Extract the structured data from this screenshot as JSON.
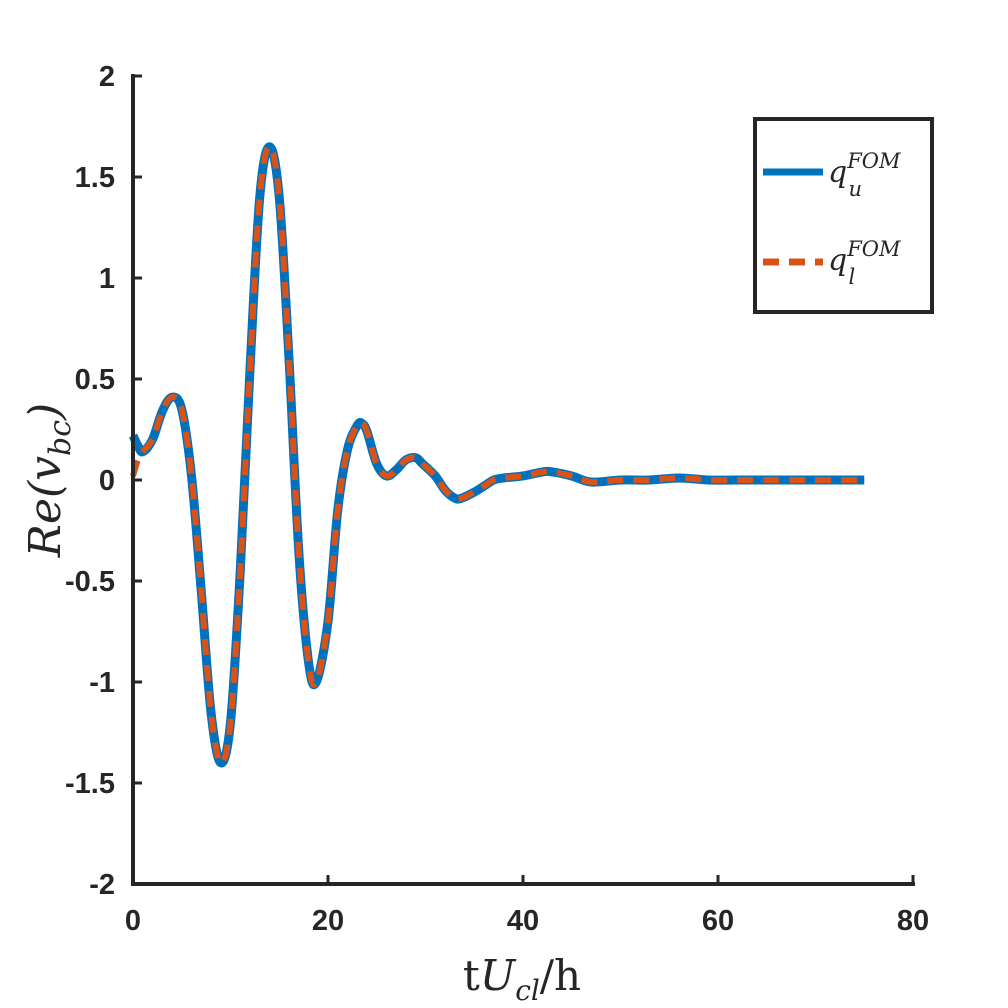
{
  "chart_data": {
    "type": "line",
    "xlim": [
      0,
      80
    ],
    "ylim": [
      -2,
      2
    ],
    "xticks": [
      0,
      20,
      40,
      60,
      80
    ],
    "yticks": [
      -2,
      -1.5,
      -1,
      -0.5,
      0,
      0.5,
      1,
      1.5,
      2
    ],
    "xtick_labels": [
      "0",
      "20",
      "40",
      "60",
      "80"
    ],
    "ytick_labels": [
      "-2",
      "-1.5",
      "-1",
      "-0.5",
      "0",
      "0.5",
      "1",
      "1.5",
      "2"
    ],
    "xlabel": {
      "pre": "t",
      "main": "U",
      "sub": "cl",
      "post": "/h"
    },
    "ylabel": {
      "main": "Re(v",
      "sub": "bc",
      "post": ")"
    },
    "legend_position": "top-right",
    "grid": false,
    "series": [
      {
        "name": {
          "base": "q",
          "sub": "u",
          "sup": "FOM"
        },
        "style": "solid",
        "color": "#0072BD",
        "x": [
          0,
          0.5,
          1,
          2,
          3,
          4,
          5,
          6,
          7,
          8,
          9,
          10,
          11,
          12,
          13,
          14,
          15,
          16,
          17,
          18,
          18.8,
          20,
          21,
          22,
          23,
          23.5,
          24,
          25,
          26,
          27,
          28,
          29,
          29.7,
          31,
          32,
          33,
          33.7,
          35,
          36,
          37,
          38,
          40,
          42,
          43,
          45,
          47,
          50,
          53,
          56,
          59,
          62,
          65,
          68,
          71,
          75
        ],
        "y": [
          0.22,
          0.17,
          0.14,
          0.2,
          0.34,
          0.41,
          0.35,
          0.02,
          -0.55,
          -1.15,
          -1.4,
          -1.2,
          -0.45,
          0.55,
          1.4,
          1.65,
          1.4,
          0.6,
          -0.35,
          -0.9,
          -1.0,
          -0.7,
          -0.15,
          0.15,
          0.27,
          0.28,
          0.24,
          0.08,
          0.02,
          0.05,
          0.1,
          0.11,
          0.08,
          0.02,
          -0.05,
          -0.09,
          -0.09,
          -0.06,
          -0.03,
          0.0,
          0.01,
          0.02,
          0.04,
          0.04,
          0.02,
          -0.01,
          0.0,
          0.0,
          0.01,
          0.0,
          0.0,
          0.0,
          0.0,
          0.0,
          0.0
        ]
      },
      {
        "name": {
          "base": "q",
          "sub": "l",
          "sup": "FOM"
        },
        "style": "dashed",
        "color": "#D95319",
        "x": [
          0,
          0.5,
          1,
          2,
          3,
          4,
          5,
          6,
          7,
          8,
          9,
          10,
          11,
          12,
          13,
          14,
          15,
          16,
          17,
          18,
          18.8,
          20,
          21,
          22,
          23,
          23.5,
          24,
          25,
          26,
          27,
          28,
          29,
          29.7,
          31,
          32,
          33,
          33.7,
          35,
          36,
          37,
          38,
          40,
          42,
          43,
          45,
          47,
          50,
          53,
          56,
          59,
          62,
          65,
          68,
          71,
          75
        ],
        "y": [
          0.02,
          0.1,
          0.14,
          0.2,
          0.34,
          0.41,
          0.35,
          0.02,
          -0.55,
          -1.15,
          -1.4,
          -1.2,
          -0.45,
          0.55,
          1.4,
          1.65,
          1.4,
          0.6,
          -0.35,
          -0.9,
          -1.0,
          -0.7,
          -0.15,
          0.15,
          0.27,
          0.28,
          0.24,
          0.08,
          0.02,
          0.05,
          0.1,
          0.11,
          0.08,
          0.02,
          -0.05,
          -0.09,
          -0.09,
          -0.06,
          -0.03,
          0.0,
          0.01,
          0.02,
          0.04,
          0.04,
          0.02,
          -0.01,
          0.0,
          0.0,
          0.01,
          0.0,
          0.0,
          0.0,
          0.0,
          0.0,
          0.0
        ]
      }
    ]
  }
}
